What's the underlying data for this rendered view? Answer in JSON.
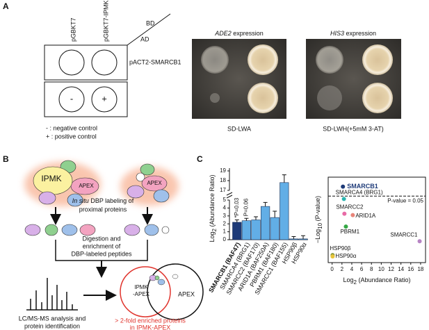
{
  "panel_a": {
    "label": "A",
    "columns": [
      "pGBKT7",
      "pGBKT7-IPMK"
    ],
    "bd": "BD",
    "ad": "AD",
    "row_label": "pACT2-SMARCB1",
    "controls": [
      "-",
      "+"
    ],
    "legend": [
      "- : negative control",
      "+ : positive control"
    ],
    "plate_titles": [
      {
        "gene": "ADE2",
        "suffix": " expression"
      },
      {
        "gene": "HIS3",
        "suffix": " expression"
      }
    ],
    "media": [
      "SD-LWA",
      "SD-LWH(+5mM 3-AT)"
    ]
  },
  "panel_b": {
    "label": "B",
    "ipmk": "IPMK",
    "apex": [
      "APEX",
      "APEX"
    ],
    "labeling": [
      {
        "italic": "In situ",
        "rest": " DBP labeling of"
      },
      "proximal proteins"
    ],
    "digestion": [
      "Digestion and",
      "enrichment of",
      "DBP-labeled peptides"
    ],
    "lcms": [
      "LC/MS-MS analysis and",
      "protein identification"
    ],
    "venn_left": [
      "IPMK",
      "-APEX"
    ],
    "venn_right": "APEX",
    "enriched": [
      "> 2-fold enriched proteins",
      "in IPMK-APEX"
    ]
  },
  "panel_c": {
    "label": "C"
  },
  "chart_data": [
    {
      "type": "bar",
      "ylabel": {
        "pre": "Log",
        "sub": "2",
        "post": " (Abundance Ratio)"
      },
      "categories": [
        "SMARCB1 (BAF47)",
        "SMARCA4 (BRG1)",
        "SMARCC2 (BAF170)",
        "ARID1A (BAF250A)",
        "PBRM1 (BAF180)",
        "SMARCC1 (BAF155)",
        "HSP90β",
        "HSP90α"
      ],
      "values": [
        2.2,
        2.4,
        2.5,
        4.2,
        2.8,
        17.8,
        0.1,
        0.1
      ],
      "errors": [
        0.3,
        0.3,
        0.4,
        0.5,
        0.8,
        0.8,
        0.3,
        0.4
      ],
      "colors": [
        "#1d3a78",
        "#62aee6",
        "#62aee6",
        "#62aee6",
        "#62aee6",
        "#62aee6",
        "#62aee6",
        "#62aee6"
      ],
      "annotations": [
        "*P=0.03",
        "P=0.06"
      ],
      "ylim": [
        0,
        19
      ],
      "y_break": [
        5,
        17
      ],
      "yticks": [
        0,
        1,
        2,
        3,
        4,
        5,
        17,
        18,
        19
      ]
    },
    {
      "type": "scatter",
      "xlabel": {
        "pre": "Log",
        "sub": "2",
        "post": " (Abundance Ratio)"
      },
      "ylabel": {
        "pre": "−Log",
        "sub": "10",
        "post": " (P-value)"
      },
      "labels": [
        "SMARCB1",
        "SMARCA4 (BRG1)",
        "SMARCC2",
        "ARID1A",
        "PBRM1",
        "SMARCC1",
        "HSP90β",
        "HSP90α"
      ],
      "x": [
        2.2,
        2.4,
        2.5,
        4.2,
        2.8,
        17.8,
        0.1,
        0.1
      ],
      "values": [
        1.5,
        1.24,
        0.93,
        0.9,
        0.66,
        0.35,
        0.06,
        0.03
      ],
      "colors": [
        "#1d3a78",
        "#2bb5b0",
        "#e86aa6",
        "#e8857a",
        "#35a845",
        "#b784c4",
        "#8a9a3a",
        "#e8c43a"
      ],
      "threshold": 1.301,
      "threshold_label": "P-value = 0.05",
      "xlim": [
        -0.8,
        19
      ],
      "ylim": [
        -0.1,
        1.7
      ],
      "xticks": [
        0,
        2,
        4,
        6,
        8,
        10,
        12,
        14,
        16,
        18
      ]
    }
  ]
}
